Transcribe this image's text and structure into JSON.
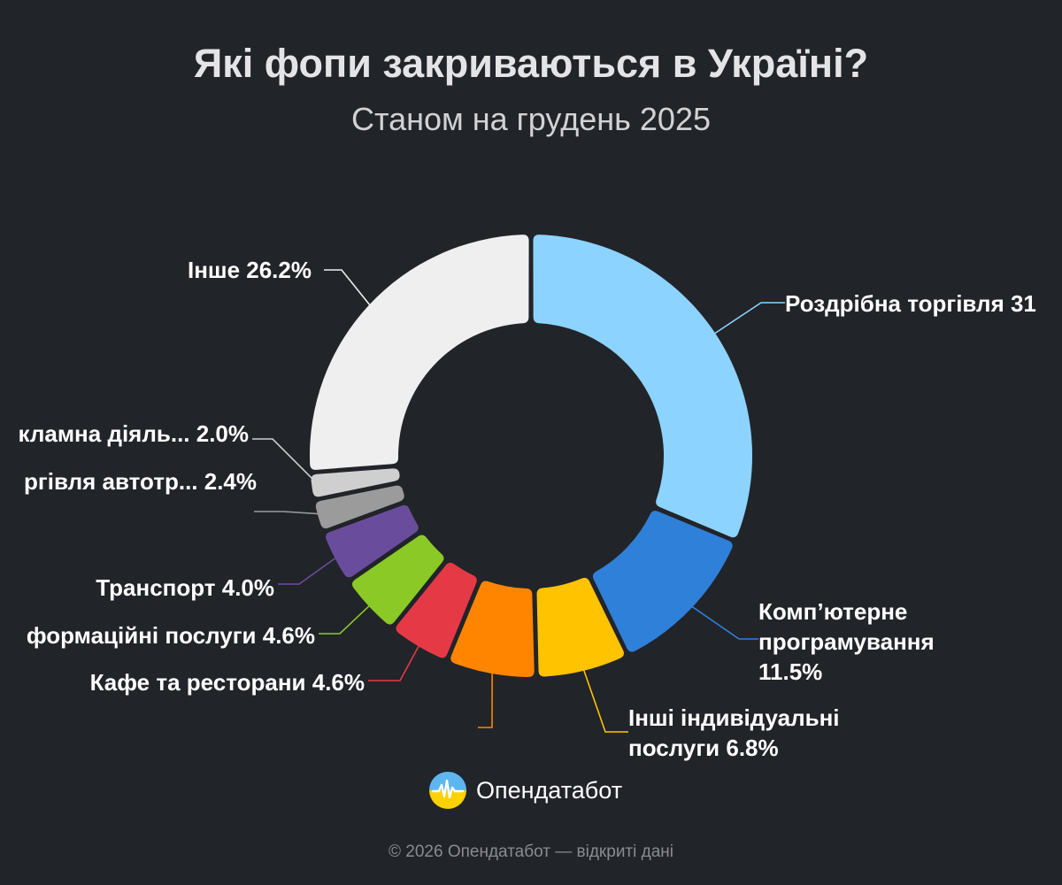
{
  "chart_data": {
    "type": "pie",
    "title": "Які фопи закриваються в Україні?",
    "subtitle": "Станом на грудень 2025",
    "unit": "%",
    "slices": [
      {
        "label": "Роздрібна торгівля",
        "display": "Роздрібна торгівля 31",
        "value": 31.3,
        "color": "#8dd3ff"
      },
      {
        "label": "Комп’ютерне програмування",
        "lines": [
          "Комп’ютерне",
          "програмування",
          "11.5%"
        ],
        "value": 11.5,
        "color": "#2f80d9"
      },
      {
        "label": "Інші індивідуальні послуги",
        "lines": [
          "Інші індивідуальні",
          "послуги 6.8%"
        ],
        "value": 6.8,
        "color": "#ffc300"
      },
      {
        "label": "",
        "value": 6.6,
        "color": "#ff8500"
      },
      {
        "label": "Кафе та ресторани",
        "display": "Кафе та ресторани 4.6%",
        "value": 4.6,
        "color": "#e63946"
      },
      {
        "label": "Інформаційні послуги",
        "display": "формаційні послуги 4.6%",
        "value": 4.6,
        "color": "#8bc926"
      },
      {
        "label": "Транспорт",
        "display": "Транспорт 4.0%",
        "value": 4.0,
        "color": "#6a4c9c"
      },
      {
        "label": "Торгівля автотр...",
        "display": "ргівля автотр...  2.4%",
        "value": 2.4,
        "color": "#9b9b9b"
      },
      {
        "label": "Рекламна діяль...",
        "display": "кламна діяль... 2.0%",
        "value": 2.0,
        "color": "#cfcfcf"
      },
      {
        "label": "Інше",
        "display": "Інше 26.2%",
        "value": 26.2,
        "color": "#efefef"
      }
    ]
  },
  "brand": {
    "name": "Опендатабот",
    "logo_icon": "opendatabot-logo-icon"
  },
  "footer": {
    "text": "© 2026 Опендатабот — відкриті дані"
  }
}
